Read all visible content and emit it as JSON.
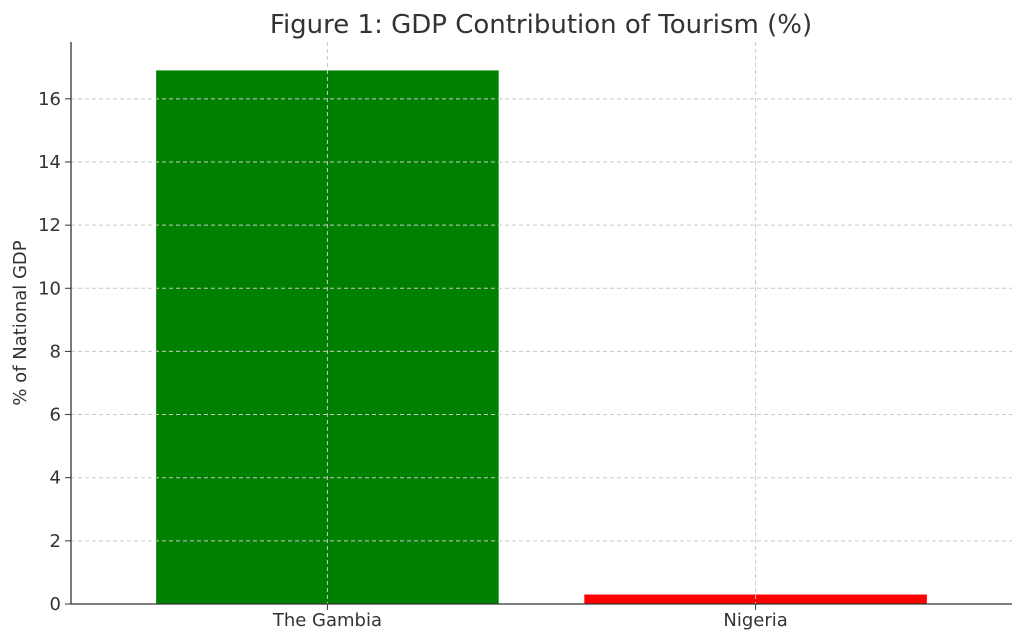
{
  "chart_data": {
    "type": "bar",
    "title": "Figure 1: GDP Contribution of Tourism (%)",
    "xlabel": "",
    "ylabel": "% of National GDP",
    "categories": [
      "The Gambia",
      "Nigeria"
    ],
    "values": [
      16.9,
      0.3
    ],
    "colors": [
      "#008000",
      "#ff0000"
    ],
    "ylim": [
      0,
      17.8
    ],
    "yticks": [
      "0",
      "2",
      "4",
      "6",
      "8",
      "10",
      "12",
      "14",
      "16"
    ],
    "grid": true
  }
}
